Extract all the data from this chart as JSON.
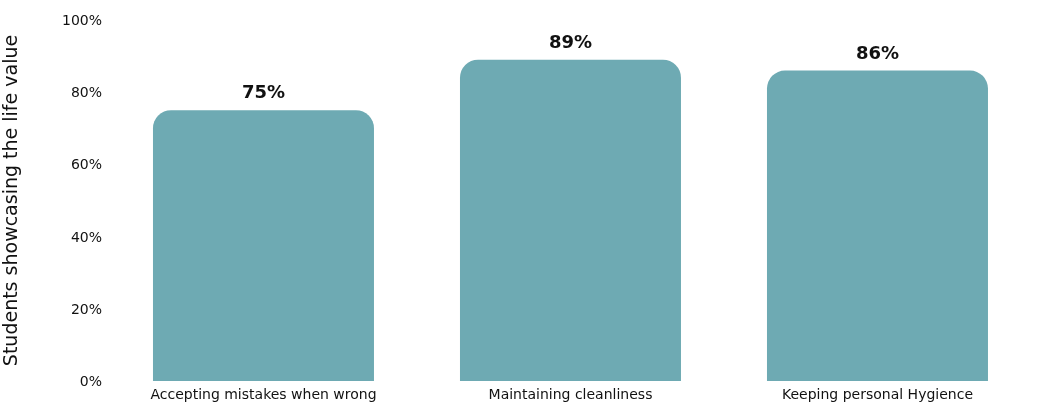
{
  "chart_data": {
    "type": "bar",
    "ylabel": "Students showcasing the life value",
    "categories": [
      "Accepting mistakes when wrong",
      "Maintaining cleanliness",
      "Keeping personal Hygience"
    ],
    "values": [
      75,
      89,
      86
    ],
    "color": "#6eaab3",
    "value_labels": [
      "75%",
      "89%",
      "86%"
    ],
    "ylim": [
      0,
      100
    ],
    "yticks": [
      {
        "value": 0,
        "label": "0%"
      },
      {
        "value": 20,
        "label": "20%"
      },
      {
        "value": 40,
        "label": "40%"
      },
      {
        "value": 60,
        "label": "60%"
      },
      {
        "value": 80,
        "label": "80%"
      },
      {
        "value": 100,
        "label": "100%"
      }
    ],
    "grid": false
  }
}
